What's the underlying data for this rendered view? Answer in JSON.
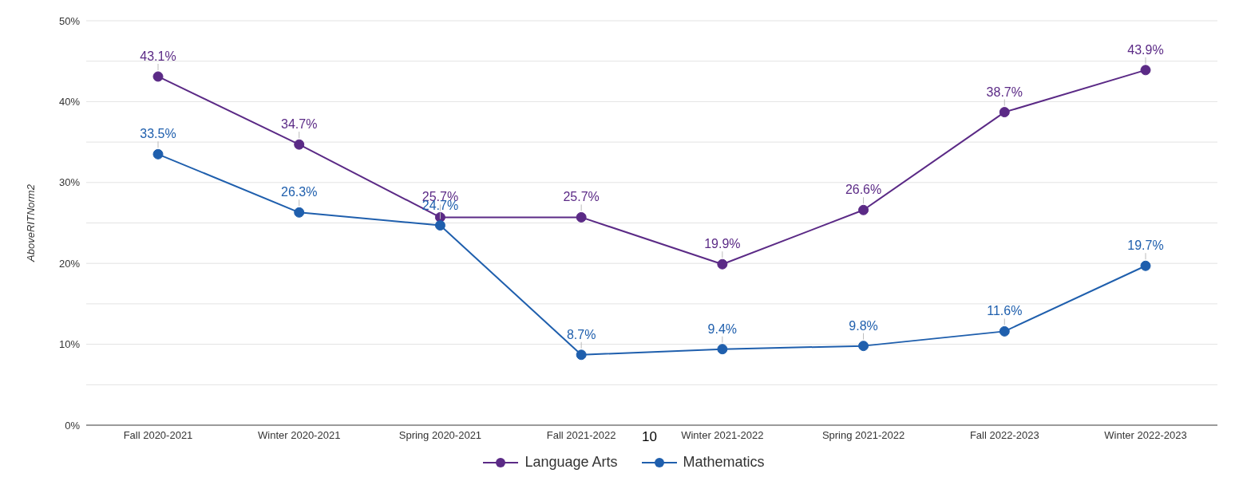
{
  "chart_data": {
    "type": "line",
    "ylabel": "AboveRITNorm2",
    "categories": [
      "Fall 2020-2021",
      "Winter 2020-2021",
      "Spring 2020-2021",
      "Fall 2021-2022",
      "Winter 2021-2022",
      "Spring 2021-2022",
      "Fall 2022-2023",
      "Winter 2022-2023"
    ],
    "series": [
      {
        "name": "Language Arts",
        "color": "#5b2a86",
        "values": [
          43.1,
          34.7,
          25.7,
          25.7,
          19.9,
          26.6,
          38.7,
          43.9
        ],
        "value_labels": [
          "43.1%",
          "34.7%",
          "25.7%",
          "25.7%",
          "19.9%",
          "26.6%",
          "38.7%",
          "43.9%"
        ]
      },
      {
        "name": "Mathematics",
        "color": "#1f5fad",
        "values": [
          33.5,
          26.3,
          24.7,
          8.7,
          9.4,
          9.8,
          11.6,
          19.7
        ],
        "value_labels": [
          "33.5%",
          "26.3%",
          "24.7%",
          "8.7%",
          "9.4%",
          "9.8%",
          "11.6%",
          "19.7%"
        ]
      }
    ],
    "ylim": [
      0,
      50
    ],
    "yticks": [
      {
        "value": 0,
        "label": "0%"
      },
      {
        "value": 5,
        "label": null
      },
      {
        "value": 10,
        "label": "10%"
      },
      {
        "value": 15,
        "label": null
      },
      {
        "value": 20,
        "label": "20%"
      },
      {
        "value": 25,
        "label": null
      },
      {
        "value": 30,
        "label": "30%"
      },
      {
        "value": 35,
        "label": null
      },
      {
        "value": 40,
        "label": "40%"
      },
      {
        "value": 45,
        "label": null
      },
      {
        "value": 50,
        "label": "50%"
      }
    ],
    "grid": "y",
    "legend": "bottom",
    "marker": "circle",
    "line_style": "solid",
    "annotations": [
      "10"
    ]
  }
}
